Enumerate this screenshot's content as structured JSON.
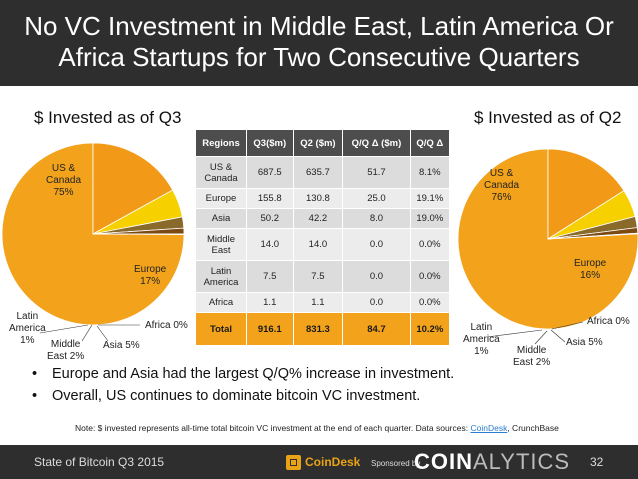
{
  "slide": {
    "title_line1": "No VC Investment in Middle East, Latin America Or",
    "title_line2": "Africa Startups for Two Consecutive Quarters"
  },
  "colors": {
    "us_canada": "#f2a31b",
    "europe": "#f29a17",
    "asia": "#f7d000",
    "middle_east": "#8a6a2a",
    "latin_america": "#7a4a12",
    "africa": "#1a1a1a",
    "dark_bar": "#2e2e2e",
    "accent": "#e8a317"
  },
  "chart_data": [
    {
      "type": "pie",
      "title": "$ Invested as of Q3",
      "slices": [
        {
          "name": "US & Canada",
          "value": 75,
          "label_line1": "US &",
          "label_line2": "Canada",
          "label_pct": "75%"
        },
        {
          "name": "Europe",
          "value": 17,
          "label_line1": "Europe",
          "label_pct": "17%"
        },
        {
          "name": "Asia",
          "value": 5,
          "label_text": "Asia 5%"
        },
        {
          "name": "Middle East",
          "value": 2,
          "label_line1": "Middle",
          "label_line2": "East 2%"
        },
        {
          "name": "Latin America",
          "value": 1,
          "label_line1": "Latin",
          "label_line2": "America",
          "label_pct": "1%"
        },
        {
          "name": "Africa",
          "value": 0.1,
          "label_text": "Africa 0%"
        }
      ]
    },
    {
      "type": "pie",
      "title": "$ Invested as of Q2",
      "slices": [
        {
          "name": "US & Canada",
          "value": 76,
          "label_line1": "US &",
          "label_line2": "Canada",
          "label_pct": "76%"
        },
        {
          "name": "Europe",
          "value": 16,
          "label_line1": "Europe",
          "label_pct": "16%"
        },
        {
          "name": "Asia",
          "value": 5,
          "label_text": "Asia 5%"
        },
        {
          "name": "Middle East",
          "value": 2,
          "label_line1": "Middle",
          "label_line2": "East 2%"
        },
        {
          "name": "Latin America",
          "value": 1,
          "label_line1": "Latin",
          "label_line2": "America",
          "label_pct": "1%"
        },
        {
          "name": "Africa",
          "value": 0.1,
          "label_text": "Africa 0%"
        }
      ]
    },
    {
      "type": "table",
      "columns": [
        "Regions",
        "Q3($m)",
        "Q2 ($m)",
        "Q/Q Δ ($m)",
        "Q/Q Δ"
      ],
      "rows": [
        [
          "US & Canada",
          "687.5",
          "635.7",
          "51.7",
          "8.1%"
        ],
        [
          "Europe",
          "155.8",
          "130.8",
          "25.0",
          "19.1%"
        ],
        [
          "Asia",
          "50.2",
          "42.2",
          "8.0",
          "19.0%"
        ],
        [
          "Middle East",
          "14.0",
          "14.0",
          "0.0",
          "0.0%"
        ],
        [
          "Latin America",
          "7.5",
          "7.5",
          "0.0",
          "0.0%"
        ],
        [
          "Africa",
          "1.1",
          "1.1",
          "0.0",
          "0.0%"
        ]
      ],
      "total": [
        "Total",
        "916.1",
        "831.3",
        "84.7",
        "10.2%"
      ]
    }
  ],
  "bullets": [
    "Europe and Asia had the largest Q/Q% increase in investment.",
    "Overall, US continues to dominate bitcoin VC investment."
  ],
  "bullet_symbol": "•",
  "note": {
    "prefix": "Note: $ invested represents all-time total bitcoin VC investment at the end of each quarter. Data sources: ",
    "link": "CoinDesk",
    "suffix": ", CrunchBase"
  },
  "footer": {
    "left": "State of Bitcoin Q3 2015",
    "logo_name": "CoinDesk",
    "sponsored": "Sponsored by",
    "brand_bold": "COIN",
    "brand_thin": "ALYTICS",
    "page_number": "32"
  }
}
